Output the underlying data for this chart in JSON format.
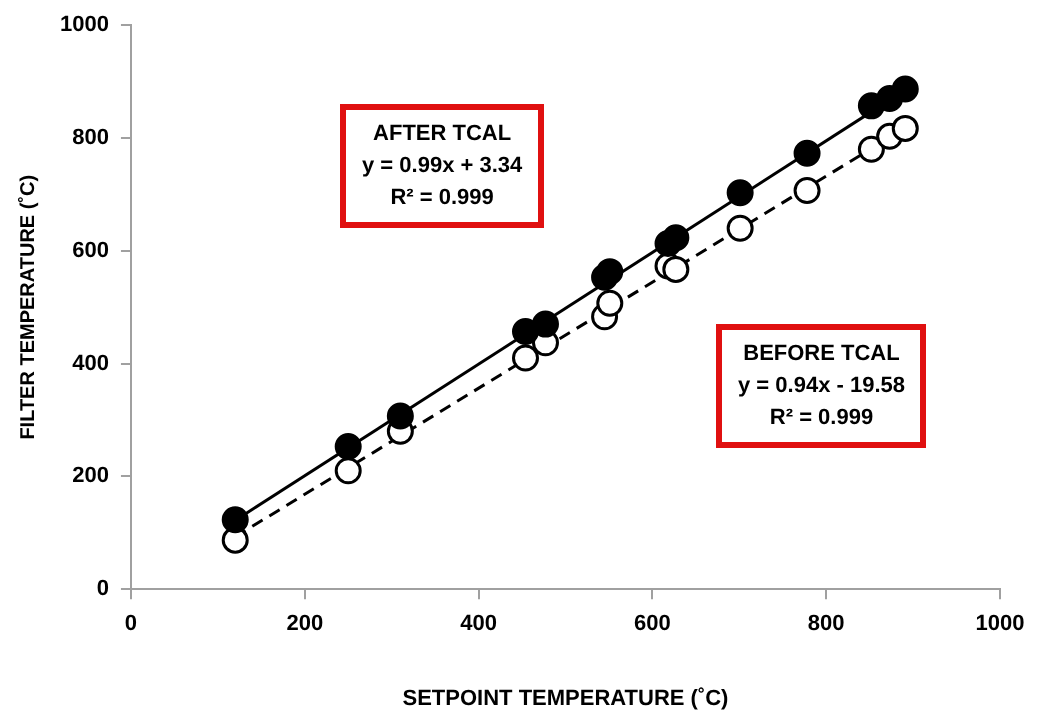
{
  "chart_data": {
    "type": "scatter",
    "xlabel": "SETPOINT TEMPERATURE (˚C)",
    "ylabel": "FILTER TEMPERATURE (˚C)",
    "xlim": [
      0,
      1000
    ],
    "xticks": [
      0,
      200,
      400,
      600,
      800,
      1000
    ],
    "ylim": [
      0,
      1000
    ],
    "yticks": [
      0,
      200,
      400,
      600,
      800,
      1000
    ],
    "grid": false,
    "legend": false,
    "series": [
      {
        "type": "line",
        "color": "#000000",
        "line_style": "solid",
        "x": [
          120,
          890
        ],
        "values": [
          122,
          884
        ]
      },
      {
        "type": "line",
        "color": "#000000",
        "line_style": "dashed",
        "x": [
          120,
          890
        ],
        "values": [
          93,
          817
        ]
      },
      {
        "color": "#000000",
        "marker": "circle",
        "x": [
          120,
          250,
          310,
          454,
          477,
          545,
          551,
          618,
          627,
          701,
          778,
          852,
          873,
          891
        ],
        "values": [
          123,
          253,
          307,
          457,
          470,
          553,
          563,
          613,
          623,
          703,
          773,
          857,
          870,
          887
        ]
      },
      {
        "color": "#ffffff",
        "marker": "circle",
        "x": [
          120,
          250,
          310,
          454,
          477,
          545,
          551,
          618,
          627,
          701,
          778,
          852,
          873,
          891
        ],
        "values": [
          87,
          210,
          280,
          410,
          437,
          483,
          507,
          573,
          567,
          640,
          707,
          780,
          803,
          817
        ]
      }
    ],
    "annotations": [
      "AFTER TCAL\ny = 0.99x + 3.34\nR² = 0.999",
      "BEFORE TCAL\ny = 0.94x - 19.58\nR² = 0.999"
    ]
  }
}
